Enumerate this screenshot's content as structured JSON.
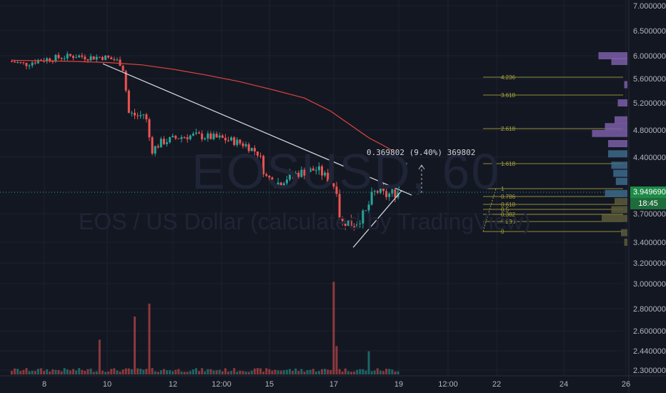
{
  "watermark": {
    "symbol": "EOSUSD, 60",
    "description": "EOS / US Dollar (calculated by TradingView)"
  },
  "price_scale": {
    "labels": [
      "7.000000",
      "6.500000",
      "6.000000",
      "5.600000",
      "5.200000",
      "4.800000",
      "4.400000",
      "3.700000",
      "3.400000",
      "3.200000",
      "3.000000",
      "2.800000",
      "2.600000",
      "2.440000",
      "2.300000"
    ],
    "current_price": "3.949690",
    "countdown": "18:45"
  },
  "time_axis": {
    "labels": [
      "8",
      "10",
      "12",
      "12:00",
      "15",
      "17",
      "19",
      "12:00",
      "22",
      "24",
      "26"
    ]
  },
  "measure_label": "0.369802 (9.40%) 369802",
  "fib_levels": [
    "4.236",
    "3.618",
    "2.618",
    "1.618",
    "1",
    "0.786",
    "0.618",
    "0.5",
    "0.382",
    "0.236",
    "0"
  ],
  "colors": {
    "up": "#26a69a",
    "down": "#ef5350",
    "ma": "#e0443e",
    "fib": "#a8a23a",
    "trend": "#d1d4dc",
    "bg": "#131722",
    "grid": "#1e2230",
    "price_tag": "#1e8a47"
  },
  "chart_data": {
    "type": "candlestick",
    "symbol": "EOSUSD",
    "interval": "60",
    "x_ticks": [
      "8",
      "10",
      "12",
      "12:00",
      "15",
      "17",
      "19",
      "12:00",
      "22",
      "24",
      "26"
    ],
    "y_ticks": [
      7.0,
      6.5,
      6.0,
      5.6,
      5.2,
      4.8,
      4.4,
      3.7,
      3.4,
      3.2,
      3.0,
      2.8,
      2.6,
      2.44,
      2.3
    ],
    "price_path": [
      [
        7.0,
        5.9
      ],
      [
        7.4,
        5.85
      ],
      [
        7.8,
        5.92
      ],
      [
        8.2,
        5.95
      ],
      [
        8.6,
        5.98
      ],
      [
        9.0,
        6.0
      ],
      [
        9.4,
        5.97
      ],
      [
        9.8,
        5.98
      ],
      [
        10.2,
        5.92
      ],
      [
        10.4,
        5.85
      ],
      [
        10.6,
        5.05
      ],
      [
        10.9,
        5.0
      ],
      [
        11.1,
        5.05
      ],
      [
        11.3,
        4.5
      ],
      [
        11.6,
        4.62
      ],
      [
        11.9,
        4.66
      ],
      [
        12.2,
        4.7
      ],
      [
        12.6,
        4.72
      ],
      [
        13.0,
        4.7
      ],
      [
        13.4,
        4.68
      ],
      [
        13.8,
        4.64
      ],
      [
        14.2,
        4.58
      ],
      [
        14.6,
        4.45
      ],
      [
        14.8,
        4.16
      ],
      [
        15.2,
        4.08
      ],
      [
        15.6,
        4.18
      ],
      [
        16.0,
        4.22
      ],
      [
        16.4,
        4.25
      ],
      [
        16.8,
        4.1
      ],
      [
        17.0,
        4.0
      ],
      [
        17.1,
        3.6
      ],
      [
        17.3,
        3.62
      ],
      [
        17.5,
        3.58
      ],
      [
        17.7,
        3.65
      ],
      [
        17.9,
        3.72
      ],
      [
        18.1,
        3.95
      ],
      [
        18.3,
        3.98
      ],
      [
        18.5,
        3.92
      ],
      [
        18.7,
        3.96
      ],
      [
        18.9,
        3.95
      ]
    ],
    "moving_average": [
      [
        7.0,
        5.92
      ],
      [
        8.0,
        5.91
      ],
      [
        9.0,
        5.9
      ],
      [
        10.0,
        5.88
      ],
      [
        11.0,
        5.84
      ],
      [
        12.0,
        5.76
      ],
      [
        13.0,
        5.66
      ],
      [
        14.0,
        5.55
      ],
      [
        15.0,
        5.42
      ],
      [
        16.0,
        5.28
      ],
      [
        16.8,
        5.08
      ],
      [
        17.4,
        4.88
      ],
      [
        18.0,
        4.68
      ],
      [
        18.4,
        4.58
      ],
      [
        18.7,
        4.5
      ]
    ],
    "trendlines": [
      {
        "from": [
          9.8,
          5.86
        ],
        "to": [
          19.3,
          3.93
        ]
      },
      {
        "from": [
          17.5,
          3.35
        ],
        "to": [
          19.0,
          3.99
        ]
      }
    ],
    "volume_spikes": [
      [
        9.7,
        0.27
      ],
      [
        10.8,
        0.45
      ],
      [
        11.2,
        0.55
      ],
      [
        16.9,
        0.72
      ],
      [
        17.0,
        0.22
      ],
      [
        18.0,
        0.18
      ]
    ],
    "volume_profile": [
      {
        "price": 6.0,
        "vol": 0.45
      },
      {
        "price": 5.9,
        "vol": 0.25
      },
      {
        "price": 5.5,
        "vol": 0.05
      },
      {
        "price": 5.2,
        "vol": 0.15
      },
      {
        "price": 4.95,
        "vol": 0.2
      },
      {
        "price": 4.85,
        "vol": 0.35
      },
      {
        "price": 4.75,
        "vol": 0.55
      },
      {
        "price": 4.6,
        "vol": 0.3
      },
      {
        "price": 4.45,
        "vol": 0.3
      },
      {
        "price": 4.3,
        "vol": 0.25
      },
      {
        "price": 4.2,
        "vol": 0.22
      },
      {
        "price": 4.1,
        "vol": 0.18
      },
      {
        "price": 3.95,
        "vol": 0.35
      },
      {
        "price": 3.85,
        "vol": 0.2
      },
      {
        "price": 3.75,
        "vol": 0.25
      },
      {
        "price": 3.65,
        "vol": 0.4
      },
      {
        "price": 3.5,
        "vol": 0.1
      },
      {
        "price": 3.4,
        "vol": 0.05
      }
    ]
  }
}
